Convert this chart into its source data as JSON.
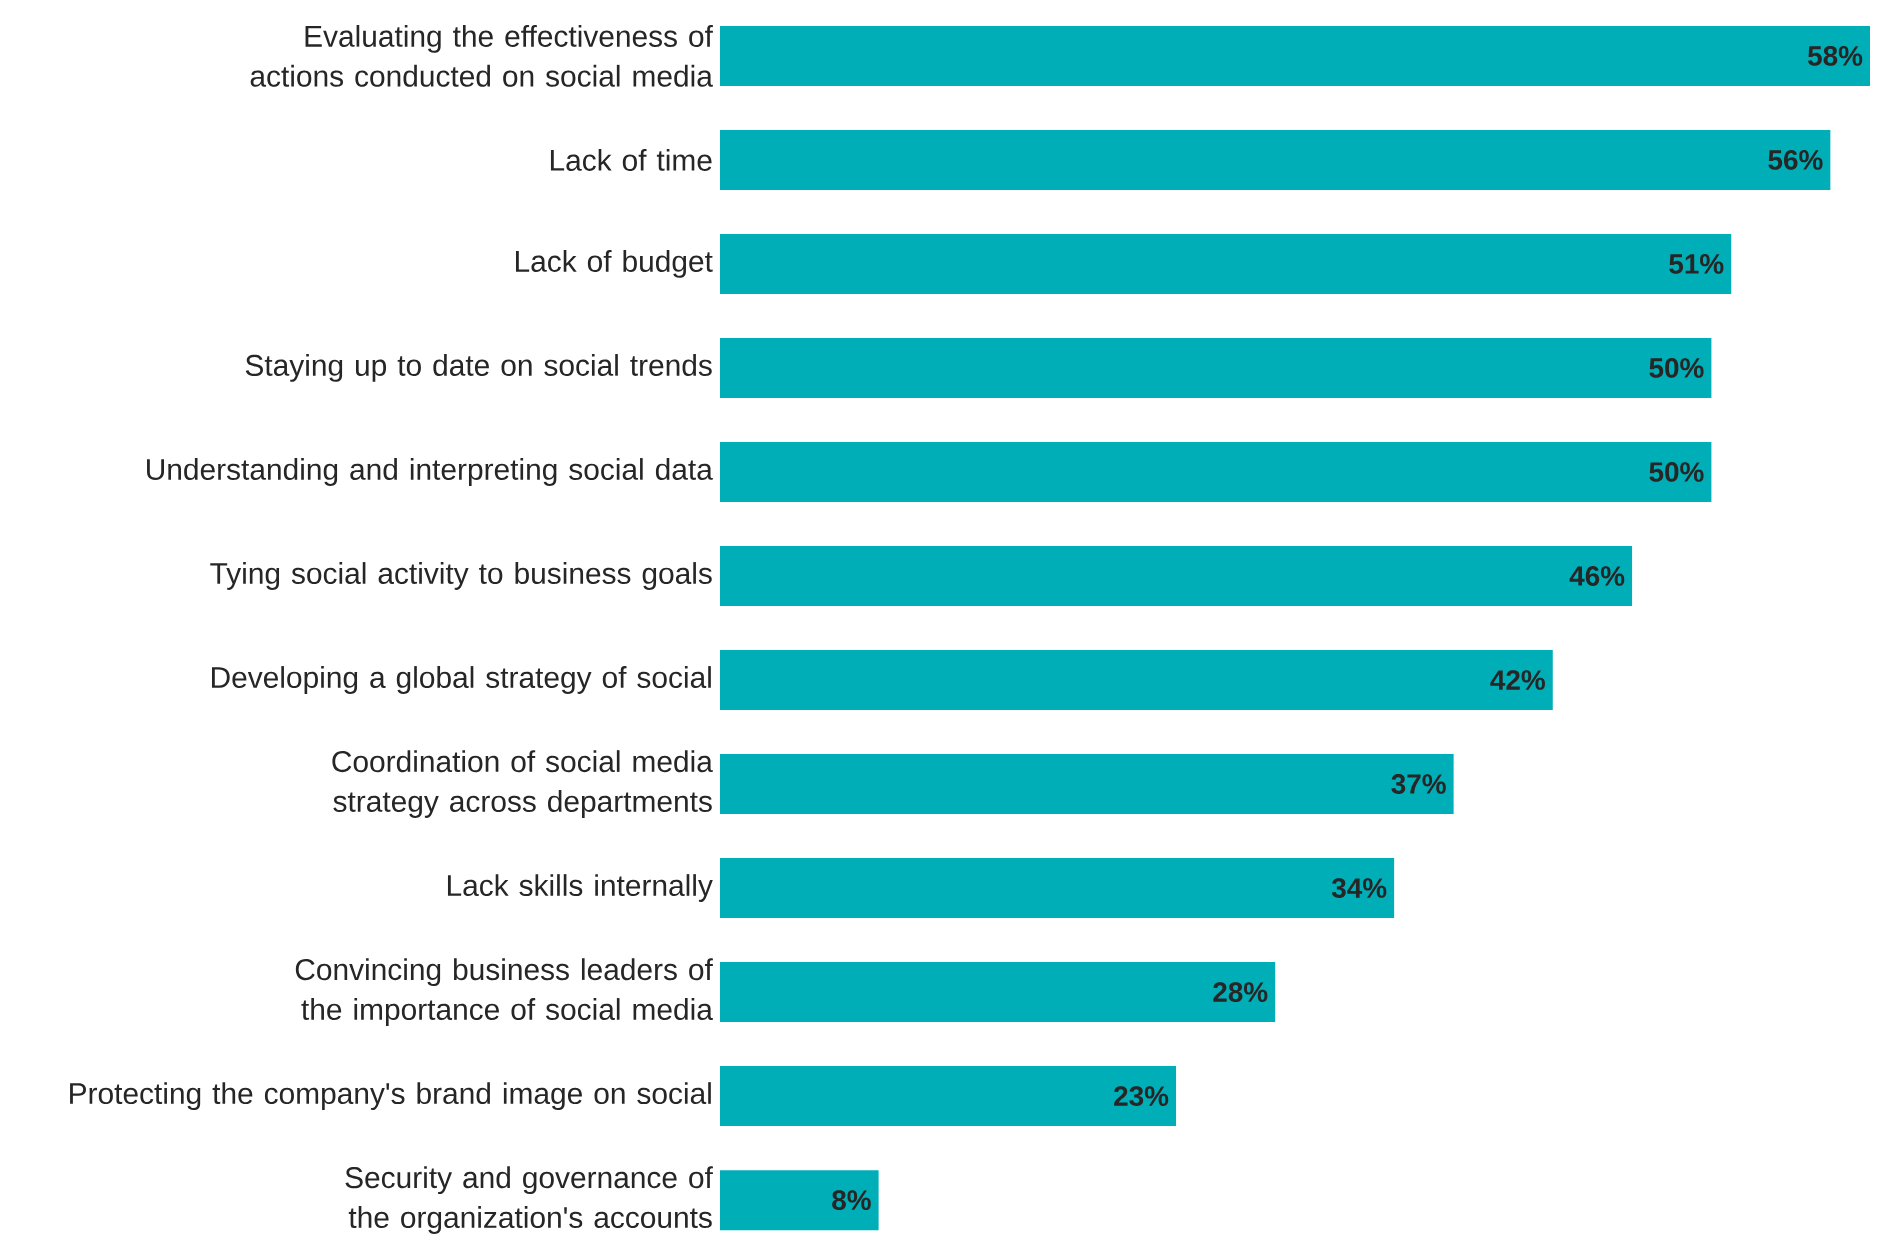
{
  "chart_data": {
    "type": "bar",
    "orientation": "horizontal",
    "color": "#00aeb8",
    "categories": [
      "Evaluating the effectiveness of actions conducted on social media",
      "Lack of time",
      "Lack of budget",
      "Staying up to date on social trends",
      "Understanding and interpreting social data",
      "Tying social activity to business goals",
      "Developing a global strategy of social",
      "Coordination of social media strategy across departments",
      "Lack skills internally",
      "Convincing business leaders of the importance of social media",
      "Protecting the company's brand image on social",
      "Security and governance of the organization's accounts"
    ],
    "values": [
      58,
      56,
      51,
      50,
      50,
      46,
      42,
      37,
      34,
      28,
      23,
      8
    ],
    "value_labels": [
      "58%",
      "56%",
      "51%",
      "50%",
      "50%",
      "46%",
      "42%",
      "37%",
      "34%",
      "28%",
      "23%",
      "8%"
    ]
  }
}
